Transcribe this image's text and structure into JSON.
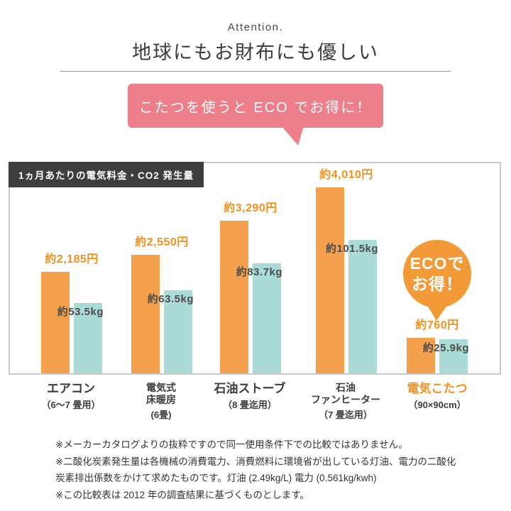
{
  "header": {
    "attention": "Attention.",
    "title": "地球にもお財布にも優しい"
  },
  "speech_bubble": {
    "text": "こたつを使うと ECO でお得に！"
  },
  "eco_badge": {
    "lines": [
      "ECOで",
      "お得！"
    ]
  },
  "chart_data": {
    "type": "bar",
    "title": "1ヵ月あたりの電気料金・CO2 発生量",
    "legend": "none",
    "grid": false,
    "series_meaning": [
      "1ヵ月あたりの電気料金(円)",
      "1ヵ月あたりのCO2発生量(kg)"
    ],
    "cost_axis_max": 4100,
    "co2_axis_max": 145,
    "categories": [
      {
        "name_lines": [
          "エアコン"
        ],
        "sub": "（6〜7 畳用）",
        "cost": 2185,
        "cost_label": "約2,185円",
        "co2": 53.5,
        "co2_label": "約53.5kg",
        "highlight": false
      },
      {
        "name_lines": [
          "電気式",
          "床暖房"
        ],
        "sub": "(6畳)",
        "cost": 2550,
        "cost_label": "約2,550円",
        "co2": 63.5,
        "co2_label": "約63.5kg",
        "highlight": false
      },
      {
        "name_lines": [
          "石油ストーブ"
        ],
        "sub": "（8 畳迄用）",
        "cost": 3290,
        "cost_label": "約3,290円",
        "co2": 83.7,
        "co2_label": "約83.7kg",
        "highlight": false
      },
      {
        "name_lines": [
          "石油",
          "ファンヒーター"
        ],
        "sub": "（7 畳迄用）",
        "cost": 4010,
        "cost_label": "約4,010円",
        "co2": 101.5,
        "co2_label": "約101.5kg",
        "highlight": false
      },
      {
        "name_lines": [
          "電気こたつ"
        ],
        "sub": "（90×90cm）",
        "cost": 760,
        "cost_label": "約760円",
        "co2": 25.9,
        "co2_label": "約25.9kg",
        "highlight": true
      }
    ]
  },
  "colors": {
    "orange_bar": "#f5a04c",
    "teal_bar": "#abdbd6",
    "cost_text": "#f2911d",
    "co2_text": "#4c4c4c",
    "pink_bubble": "#ed7e8a",
    "badge_orange": "#f29a38",
    "chart_border": "#c9c9c9",
    "title_tag_bg": "#3d3d3d"
  },
  "footnotes": [
    "※メーカーカタログよりの抜粋ですので同一使用条件下での比較ではありません。",
    "※二酸化炭素発生量は各機械の消費電力、消費燃料に環境省が出している灯油、電力の二酸化炭素排出係数をかけて求めたものです。灯油 (2.49kg/L) 電力 (0.561kg/kwh)",
    "※この比較表は 2012 年の調査結果に基づくものとします。"
  ]
}
